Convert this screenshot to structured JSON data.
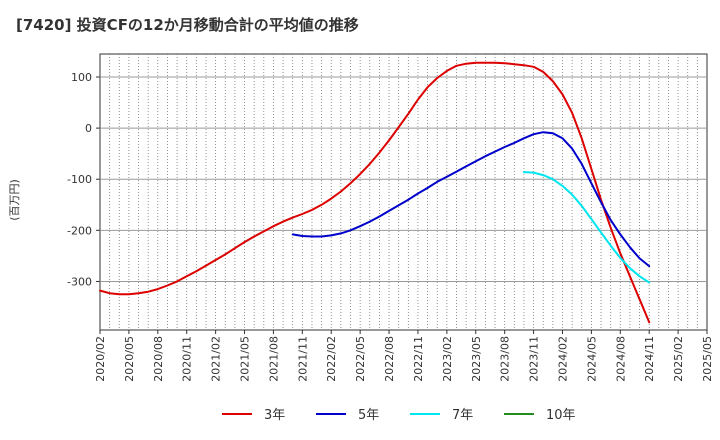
{
  "title": "[7420]  投資CFの12か月移動合計の平均値の推移",
  "chart_data": {
    "type": "line",
    "title": "[7420]  投資CFの12か月移動合計の平均値の推移",
    "xlabel": "",
    "ylabel": "(百万円)",
    "ylim": [
      -395,
      145
    ],
    "yticks": [
      100,
      0,
      -100,
      -200,
      -300
    ],
    "xlim": [
      "2020-02",
      "2025-05"
    ],
    "xticks": [
      "2020/02",
      "2020/05",
      "2020/08",
      "2020/11",
      "2021/02",
      "2021/05",
      "2021/08",
      "2021/11",
      "2022/02",
      "2022/05",
      "2022/08",
      "2022/11",
      "2023/02",
      "2023/05",
      "2023/08",
      "2023/11",
      "2024/02",
      "2024/05",
      "2024/08",
      "2024/11",
      "2025/02",
      "2025/05"
    ],
    "grid": true,
    "legend_position": "bottom",
    "series": [
      {
        "name": "3年",
        "color": "#dd0000",
        "points": [
          [
            "2020-02",
            -318
          ],
          [
            "2020-03",
            -323
          ],
          [
            "2020-04",
            -325
          ],
          [
            "2020-05",
            -325
          ],
          [
            "2020-06",
            -323
          ],
          [
            "2020-07",
            -320
          ],
          [
            "2020-08",
            -315
          ],
          [
            "2020-09",
            -308
          ],
          [
            "2020-10",
            -300
          ],
          [
            "2020-11",
            -290
          ],
          [
            "2020-12",
            -280
          ],
          [
            "2021-01",
            -269
          ],
          [
            "2021-02",
            -258
          ],
          [
            "2021-03",
            -247
          ],
          [
            "2021-04",
            -235
          ],
          [
            "2021-05",
            -223
          ],
          [
            "2021-06",
            -212
          ],
          [
            "2021-07",
            -202
          ],
          [
            "2021-08",
            -192
          ],
          [
            "2021-09",
            -183
          ],
          [
            "2021-10",
            -175
          ],
          [
            "2021-11",
            -168
          ],
          [
            "2021-12",
            -160
          ],
          [
            "2022-01",
            -150
          ],
          [
            "2022-02",
            -138
          ],
          [
            "2022-03",
            -124
          ],
          [
            "2022-04",
            -108
          ],
          [
            "2022-05",
            -90
          ],
          [
            "2022-06",
            -70
          ],
          [
            "2022-07",
            -48
          ],
          [
            "2022-08",
            -24
          ],
          [
            "2022-09",
            2
          ],
          [
            "2022-10",
            28
          ],
          [
            "2022-11",
            56
          ],
          [
            "2022-12",
            80
          ],
          [
            "2023-01",
            98
          ],
          [
            "2023-02",
            112
          ],
          [
            "2023-03",
            122
          ],
          [
            "2023-04",
            126
          ],
          [
            "2023-05",
            128
          ],
          [
            "2023-06",
            128
          ],
          [
            "2023-07",
            128
          ],
          [
            "2023-08",
            127
          ],
          [
            "2023-09",
            125
          ],
          [
            "2023-10",
            123
          ],
          [
            "2023-11",
            120
          ],
          [
            "2023-12",
            110
          ],
          [
            "2024-01",
            92
          ],
          [
            "2024-02",
            66
          ],
          [
            "2024-03",
            30
          ],
          [
            "2024-04",
            -20
          ],
          [
            "2024-05",
            -80
          ],
          [
            "2024-06",
            -140
          ],
          [
            "2024-07",
            -195
          ],
          [
            "2024-08",
            -245
          ],
          [
            "2024-09",
            -290
          ],
          [
            "2024-10",
            -335
          ],
          [
            "2024-11",
            -380
          ]
        ]
      },
      {
        "name": "5年",
        "color": "#0000cc",
        "points": [
          [
            "2021-10",
            -208
          ],
          [
            "2021-11",
            -211
          ],
          [
            "2021-12",
            -212
          ],
          [
            "2022-01",
            -212
          ],
          [
            "2022-02",
            -210
          ],
          [
            "2022-03",
            -206
          ],
          [
            "2022-04",
            -200
          ],
          [
            "2022-05",
            -192
          ],
          [
            "2022-06",
            -183
          ],
          [
            "2022-07",
            -173
          ],
          [
            "2022-08",
            -162
          ],
          [
            "2022-09",
            -151
          ],
          [
            "2022-10",
            -140
          ],
          [
            "2022-11",
            -128
          ],
          [
            "2022-12",
            -117
          ],
          [
            "2023-01",
            -105
          ],
          [
            "2023-02",
            -95
          ],
          [
            "2023-03",
            -85
          ],
          [
            "2023-04",
            -75
          ],
          [
            "2023-05",
            -65
          ],
          [
            "2023-06",
            -55
          ],
          [
            "2023-07",
            -46
          ],
          [
            "2023-08",
            -37
          ],
          [
            "2023-09",
            -29
          ],
          [
            "2023-10",
            -20
          ],
          [
            "2023-11",
            -12
          ],
          [
            "2023-12",
            -8
          ],
          [
            "2024-01",
            -10
          ],
          [
            "2024-02",
            -20
          ],
          [
            "2024-03",
            -40
          ],
          [
            "2024-04",
            -70
          ],
          [
            "2024-05",
            -108
          ],
          [
            "2024-06",
            -145
          ],
          [
            "2024-07",
            -180
          ],
          [
            "2024-08",
            -208
          ],
          [
            "2024-09",
            -233
          ],
          [
            "2024-10",
            -255
          ],
          [
            "2024-11",
            -270
          ]
        ]
      },
      {
        "name": "7年",
        "color": "#00e5ee",
        "points": [
          [
            "2023-10",
            -86
          ],
          [
            "2023-11",
            -87
          ],
          [
            "2023-12",
            -92
          ],
          [
            "2024-01",
            -100
          ],
          [
            "2024-02",
            -113
          ],
          [
            "2024-03",
            -130
          ],
          [
            "2024-04",
            -152
          ],
          [
            "2024-05",
            -178
          ],
          [
            "2024-06",
            -204
          ],
          [
            "2024-07",
            -230
          ],
          [
            "2024-08",
            -254
          ],
          [
            "2024-09",
            -274
          ],
          [
            "2024-10",
            -290
          ],
          [
            "2024-11",
            -302
          ]
        ]
      },
      {
        "name": "10年",
        "color": "#228b22",
        "points": []
      }
    ]
  }
}
